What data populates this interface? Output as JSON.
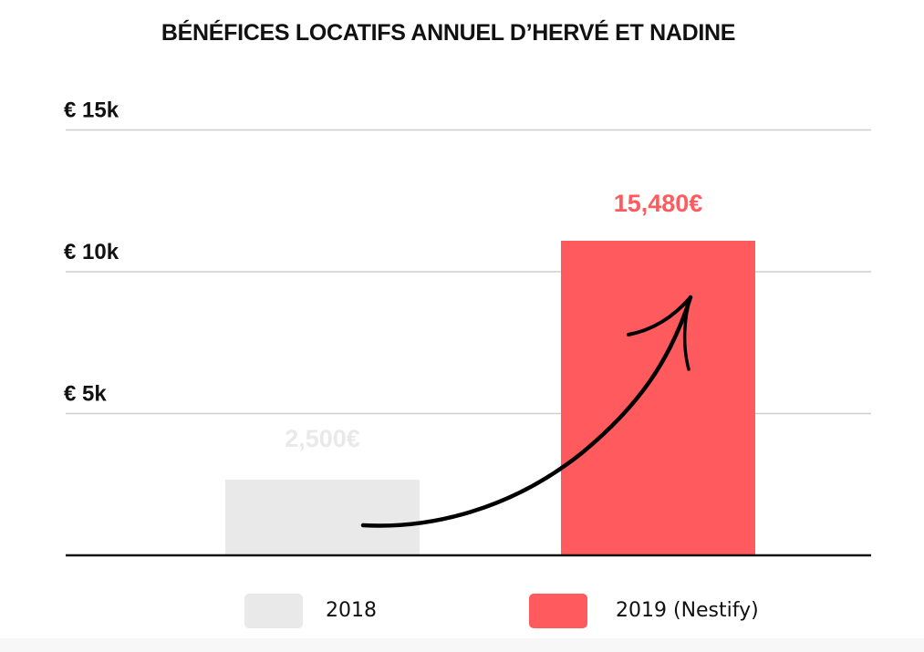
{
  "colors": {
    "bar_2018": "#e9e9e9",
    "bar_2019": "#ff5a5e",
    "label_2018": "#e9e9e9",
    "label_2019": "#ff5a5e",
    "grid": "#cfcfcf",
    "axis": "#111111"
  },
  "chart_data": {
    "type": "bar",
    "title": "BÉNÉFICES LOCATIFS ANNUEL D’HERVÉ ET NADINE",
    "xlabel": "",
    "ylabel": "",
    "ylim": [
      0,
      15000
    ],
    "grid": true,
    "legend_position": "bottom",
    "y_ticks": [
      {
        "value": 5000,
        "label": "€ 5k"
      },
      {
        "value": 10000,
        "label": "€ 10k"
      },
      {
        "value": 15000,
        "label": "€ 15k"
      }
    ],
    "categories": [
      "2018",
      "2019 (Nestify)"
    ],
    "values": [
      2500,
      15480
    ],
    "data_labels": [
      "2,500€",
      "15,480€"
    ],
    "annotation": "arrow-up-right-icon"
  }
}
